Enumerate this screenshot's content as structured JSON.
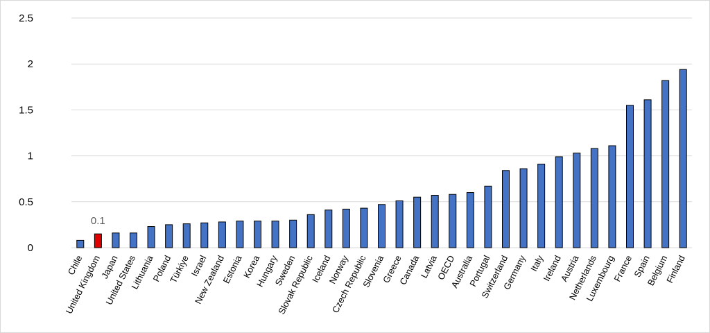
{
  "chart_data": {
    "type": "bar",
    "title": "",
    "xlabel": "",
    "ylabel": "",
    "ylim": [
      0,
      2.5
    ],
    "yticks": [
      0,
      0.5,
      1,
      1.5,
      2,
      2.5
    ],
    "grid": true,
    "legend": "none",
    "colors": {
      "default": "#4472C4",
      "highlight": "#E00000",
      "outline": "#000000",
      "grid": "#d9d9d9"
    },
    "highlight_index": 1,
    "annotations": [
      {
        "category": "United Kingdom",
        "text": "0.1"
      }
    ],
    "categories": [
      "Chile",
      "United Kingdom",
      "Japan",
      "United States",
      "Lithuania",
      "Poland",
      "Türkiye",
      "Israel",
      "New Zealand",
      "Estonia",
      "Korea",
      "Hungary",
      "Sweden",
      "Slovak Republic",
      "Iceland",
      "Norway",
      "Czech Republic",
      "Slovenia",
      "Greece",
      "Canada",
      "Latvia",
      "OECD",
      "Australia",
      "Portugal",
      "Switzerland",
      "Germany",
      "Italy",
      "Ireland",
      "Austria",
      "Netherlands",
      "Luxembourg",
      "France",
      "Spain",
      "Belgium",
      "Finland"
    ],
    "values": [
      0.08,
      0.15,
      0.16,
      0.16,
      0.23,
      0.25,
      0.26,
      0.27,
      0.28,
      0.29,
      0.29,
      0.29,
      0.3,
      0.36,
      0.41,
      0.42,
      0.43,
      0.47,
      0.51,
      0.55,
      0.57,
      0.58,
      0.6,
      0.67,
      0.84,
      0.86,
      0.91,
      0.99,
      1.03,
      1.08,
      1.11,
      1.55,
      1.61,
      1.82,
      1.94
    ]
  }
}
